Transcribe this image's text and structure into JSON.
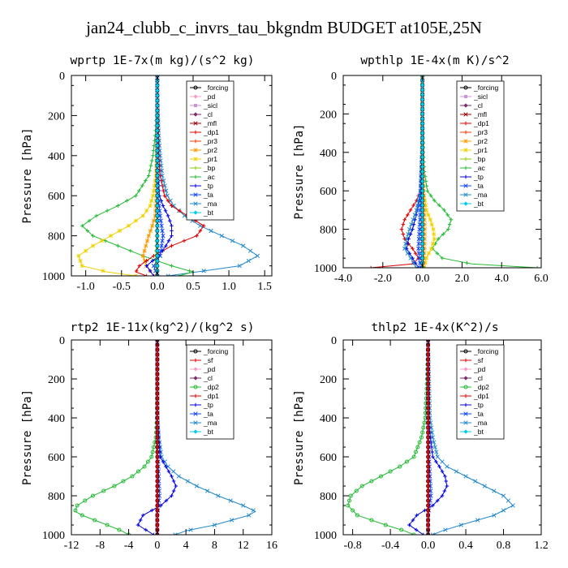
{
  "title": "jan24_clubb_c_invrs_tau_bkgndm  BUDGET at105E,25N",
  "colors": {
    "_forcing": "#000000",
    "_pd": "#f2a0c8",
    "_sicl": "#c896d2",
    "_cl": "#7a2a6a",
    "_mfl": "#990000",
    "_dp1": "#dd0000",
    "_pr3": "#ff3300",
    "_pr2": "#ff9900",
    "_pr1": "#f0d200",
    "_bp": "#88cc00",
    "_ac": "#22bb33",
    "_tp": "#0000dd",
    "_ta": "#1144ff",
    "_ma": "#2288cc",
    "_bt": "#00ccee",
    "_sf": "#dd0000",
    "_dp2": "#22bb33"
  },
  "chart_data": [
    {
      "type": "line",
      "title": "wprtp   1E-7x(m kg)/(s^2 kg)",
      "ylabel": "Pressure [hPa]",
      "ylim": [
        1000,
        0
      ],
      "xlim": [
        -1.2,
        1.6
      ],
      "xticks": [
        -1.0,
        -0.5,
        0.0,
        0.5,
        1.0,
        1.5
      ],
      "xticklabels": [
        "-1.0",
        "-0.5",
        "0.0",
        "0.5",
        "1.0",
        "1.5"
      ],
      "yticks": [
        0,
        200,
        400,
        600,
        800,
        1000
      ],
      "legend": [
        "_forcing",
        "_pd",
        "_sicl",
        "_cl",
        "_mfl",
        "_dp1",
        "_pr3",
        "_pr2",
        "_pr1",
        "_bp",
        "_ac",
        "_tp",
        "_ta",
        "_ma",
        "_bt"
      ],
      "series": [
        {
          "name": "_ma",
          "p": [
            0,
            100,
            200,
            300,
            400,
            500,
            600,
            650,
            700,
            750,
            800,
            850,
            900,
            950,
            980,
            1000
          ],
          "x": [
            0.0,
            0.0,
            0.01,
            0.02,
            0.04,
            0.07,
            0.14,
            0.23,
            0.38,
            0.6,
            0.9,
            1.2,
            1.4,
            1.15,
            0.55,
            0.15
          ]
        },
        {
          "name": "_ac",
          "p": [
            0,
            100,
            200,
            300,
            400,
            500,
            600,
            650,
            700,
            750,
            800,
            850,
            900,
            950,
            980,
            1000
          ],
          "x": [
            0.0,
            0.0,
            -0.01,
            -0.03,
            -0.06,
            -0.12,
            -0.3,
            -0.55,
            -0.85,
            -1.05,
            -0.9,
            -0.55,
            -0.2,
            0.2,
            0.5,
            0.3
          ]
        },
        {
          "name": "_pr1",
          "p": [
            0,
            200,
            400,
            500,
            600,
            650,
            700,
            750,
            800,
            850,
            900,
            950,
            980,
            1000
          ],
          "x": [
            0.0,
            0.0,
            -0.01,
            -0.02,
            -0.06,
            -0.1,
            -0.2,
            -0.4,
            -0.65,
            -0.9,
            -1.1,
            -1.05,
            -0.7,
            -0.3
          ]
        },
        {
          "name": "_pr2",
          "p": [
            0,
            400,
            600,
            700,
            750,
            800,
            850,
            900,
            950,
            1000
          ],
          "x": [
            0.0,
            0.0,
            -0.01,
            -0.03,
            -0.07,
            -0.12,
            -0.16,
            -0.2,
            -0.15,
            -0.05
          ]
        },
        {
          "name": "_dp1",
          "p": [
            0,
            200,
            400,
            500,
            600,
            650,
            700,
            750,
            800,
            850,
            900,
            950,
            980,
            1000
          ],
          "x": [
            0.0,
            0.01,
            0.02,
            0.04,
            0.1,
            0.2,
            0.42,
            0.65,
            0.55,
            0.2,
            -0.05,
            -0.25,
            -0.3,
            -0.15
          ]
        },
        {
          "name": "_tp",
          "p": [
            0,
            200,
            400,
            500,
            600,
            650,
            700,
            750,
            800,
            850,
            900,
            950,
            1000
          ],
          "x": [
            0.0,
            0.0,
            0.0,
            0.01,
            0.03,
            0.08,
            0.15,
            0.2,
            0.2,
            0.12,
            0.02,
            -0.15,
            -0.05
          ]
        },
        {
          "name": "_ta",
          "p": [
            0,
            400,
            600,
            700,
            800,
            900,
            950,
            1000
          ],
          "x": [
            0.0,
            0.0,
            0.01,
            0.04,
            0.08,
            0.04,
            -0.05,
            0.0
          ]
        },
        {
          "name": "_bp",
          "p": [
            0,
            400,
            600,
            800,
            900,
            950,
            1000
          ],
          "x": [
            0.0,
            0.0,
            0.0,
            -0.01,
            -0.02,
            -0.02,
            0.0
          ]
        },
        {
          "name": "_forcing",
          "p": [
            0,
            100,
            200,
            300,
            400,
            500,
            600,
            700,
            800,
            900,
            1000
          ],
          "x": [
            0,
            0,
            0,
            0,
            0,
            0,
            0,
            0,
            0,
            0,
            0
          ]
        },
        {
          "name": "_bt",
          "p": [
            0,
            200,
            400,
            600,
            800,
            1000
          ],
          "x": [
            0,
            0,
            0,
            0,
            0,
            0
          ]
        }
      ]
    },
    {
      "type": "line",
      "title": "wpthlp   1E-4x(m K)/s^2",
      "ylabel": "Pressure [hPa]",
      "ylim": [
        1000,
        0
      ],
      "xlim": [
        -4.0,
        6.0
      ],
      "xticks": [
        -4,
        -2,
        0,
        2,
        4,
        6
      ],
      "xticklabels": [
        "-4.0",
        "-2.0",
        "0.0",
        "2.0",
        "4.0",
        "6.0"
      ],
      "yticks": [
        0,
        200,
        400,
        600,
        800,
        1000
      ],
      "legend": [
        "_forcing",
        "_sicl",
        "_cl",
        "_mfl",
        "_dp1",
        "_pr3",
        "_pr2",
        "_pr1",
        "_bp",
        "_ac",
        "_tp",
        "_ta",
        "_ma",
        "_bt"
      ],
      "series": [
        {
          "name": "_ac",
          "p": [
            0,
            200,
            400,
            500,
            600,
            650,
            700,
            750,
            800,
            850,
            900,
            950,
            980,
            1000
          ],
          "x": [
            0.0,
            0.01,
            0.05,
            0.1,
            0.25,
            0.6,
            1.1,
            1.45,
            1.3,
            0.8,
            0.5,
            1.0,
            2.5,
            5.8
          ]
        },
        {
          "name": "_dp1",
          "p": [
            0,
            400,
            600,
            650,
            700,
            750,
            800,
            850,
            900,
            950,
            980,
            1000
          ],
          "x": [
            0.0,
            -0.02,
            -0.1,
            -0.3,
            -0.6,
            -0.9,
            -1.05,
            -0.9,
            -0.5,
            -0.2,
            -0.5,
            -2.6
          ]
        },
        {
          "name": "_pr1",
          "p": [
            0,
            400,
            600,
            700,
            750,
            800,
            850,
            900,
            950,
            1000
          ],
          "x": [
            0.0,
            0.0,
            0.05,
            0.2,
            0.4,
            0.55,
            0.6,
            0.45,
            0.2,
            0.1
          ]
        },
        {
          "name": "_tp",
          "p": [
            0,
            400,
            600,
            700,
            800,
            850,
            900,
            950,
            1000
          ],
          "x": [
            0.0,
            -0.02,
            -0.08,
            -0.25,
            -0.5,
            -0.7,
            -0.8,
            -0.5,
            -0.2
          ]
        },
        {
          "name": "_ma",
          "p": [
            0,
            400,
            600,
            700,
            800,
            850,
            900,
            950,
            1000
          ],
          "x": [
            0.0,
            -0.02,
            -0.1,
            -0.3,
            -0.65,
            -0.8,
            -0.9,
            -0.6,
            -0.3
          ]
        },
        {
          "name": "_ta",
          "p": [
            0,
            400,
            600,
            800,
            900,
            1000
          ],
          "x": [
            0.0,
            0.0,
            -0.05,
            -0.15,
            -0.2,
            -0.1
          ]
        },
        {
          "name": "_pr2",
          "p": [
            0,
            400,
            600,
            800,
            900,
            1000
          ],
          "x": [
            0.0,
            0.0,
            0.05,
            0.12,
            0.1,
            0.05
          ]
        },
        {
          "name": "_forcing",
          "p": [
            0,
            200,
            400,
            600,
            800,
            1000
          ],
          "x": [
            0,
            0,
            0,
            0,
            0,
            0
          ]
        },
        {
          "name": "_bt",
          "p": [
            0,
            200,
            400,
            600,
            800,
            1000
          ],
          "x": [
            0,
            0,
            0,
            0,
            0,
            0
          ]
        }
      ]
    },
    {
      "type": "line",
      "title": "rtp2   1E-11x(kg^2)/(kg^2 s)",
      "ylabel": "Pressure [hPa]",
      "ylim": [
        1000,
        0
      ],
      "xlim": [
        -12,
        16
      ],
      "xticks": [
        -12,
        -8,
        -4,
        0,
        4,
        8,
        12,
        16
      ],
      "xticklabels": [
        "-12",
        "-8",
        "-4",
        "0",
        "4",
        "8",
        "12",
        "16"
      ],
      "yticks": [
        0,
        200,
        400,
        600,
        800,
        1000
      ],
      "legend": [
        "_forcing",
        "_sf",
        "_pd",
        "_cl",
        "_dp2",
        "_dp1",
        "_tp",
        "_ta",
        "_ma",
        "_bt"
      ],
      "series": [
        {
          "name": "_ma",
          "p": [
            0,
            200,
            400,
            500,
            600,
            650,
            700,
            750,
            800,
            850,
            880,
            900,
            950,
            980,
            1000
          ],
          "x": [
            0.0,
            0.0,
            0.05,
            0.2,
            0.6,
            1.5,
            3.0,
            5.5,
            8.5,
            12.0,
            13.7,
            12.8,
            8.0,
            4.0,
            2.5
          ]
        },
        {
          "name": "_dp2",
          "p": [
            0,
            200,
            400,
            500,
            600,
            650,
            700,
            750,
            800,
            850,
            880,
            900,
            950,
            980,
            1000
          ],
          "x": [
            0.0,
            0.0,
            -0.05,
            -0.2,
            -0.8,
            -1.8,
            -3.5,
            -6.0,
            -9.0,
            -11.2,
            -11.5,
            -10.5,
            -7.0,
            -5.0,
            -4.0
          ]
        },
        {
          "name": "_tp",
          "p": [
            0,
            400,
            600,
            650,
            700,
            750,
            800,
            850,
            900,
            950,
            1000
          ],
          "x": [
            0.0,
            0.0,
            0.4,
            1.2,
            2.0,
            2.6,
            2.0,
            0.5,
            -2.0,
            -2.7,
            -0.5
          ]
        },
        {
          "name": "_ta",
          "p": [
            0,
            400,
            600,
            800,
            900,
            1000
          ],
          "x": [
            0.0,
            0.0,
            0.1,
            0.3,
            0.0,
            0.0
          ]
        },
        {
          "name": "_dp1",
          "p": [
            0,
            600,
            800,
            1000
          ],
          "x": [
            0,
            0,
            0,
            0
          ]
        },
        {
          "name": "_forcing",
          "p": [
            0,
            200,
            400,
            600,
            800,
            1000
          ],
          "x": [
            0,
            0,
            0,
            0,
            0,
            0
          ]
        },
        {
          "name": "_sf",
          "p": [
            0,
            100,
            200,
            300,
            400,
            500,
            600,
            700,
            800,
            900,
            1000
          ],
          "x": [
            0,
            0,
            0,
            0,
            0,
            0,
            0,
            0,
            0,
            0,
            0
          ]
        }
      ]
    },
    {
      "type": "line",
      "title": "thlp2   1E-4x(K^2)/s",
      "ylabel": "Pressure [hPa]",
      "ylim": [
        1000,
        0
      ],
      "xlim": [
        -0.9,
        1.2
      ],
      "xticks": [
        -0.8,
        -0.4,
        0.0,
        0.4,
        0.8,
        1.2
      ],
      "xticklabels": [
        "-0.8",
        "-0.4",
        "0.0",
        "0.4",
        "0.8",
        "1.2"
      ],
      "yticks": [
        0,
        200,
        400,
        600,
        800,
        1000
      ],
      "legend": [
        "_forcing",
        "_sf",
        "_pd",
        "_cl",
        "_dp2",
        "_dp1",
        "_tp",
        "_ta",
        "_ma",
        "_bt"
      ],
      "series": [
        {
          "name": "_ma",
          "p": [
            0,
            200,
            400,
            500,
            600,
            650,
            700,
            750,
            800,
            850,
            900,
            950,
            980,
            1000
          ],
          "x": [
            0.0,
            0.01,
            0.02,
            0.05,
            0.1,
            0.2,
            0.4,
            0.6,
            0.8,
            0.9,
            0.7,
            0.35,
            0.15,
            0.05
          ]
        },
        {
          "name": "_dp2",
          "p": [
            0,
            200,
            400,
            500,
            600,
            650,
            700,
            750,
            800,
            850,
            900,
            950,
            980,
            1000
          ],
          "x": [
            0.0,
            -0.01,
            -0.03,
            -0.07,
            -0.15,
            -0.3,
            -0.5,
            -0.7,
            -0.82,
            -0.85,
            -0.75,
            -0.45,
            -0.25,
            -0.15
          ]
        },
        {
          "name": "_tp",
          "p": [
            0,
            400,
            600,
            650,
            700,
            750,
            800,
            850,
            900,
            950,
            1000
          ],
          "x": [
            0.0,
            0.0,
            0.05,
            0.12,
            0.18,
            0.2,
            0.15,
            0.05,
            -0.12,
            -0.2,
            -0.05
          ]
        },
        {
          "name": "_ta",
          "p": [
            0,
            400,
            600,
            800,
            900,
            1000
          ],
          "x": [
            0.0,
            0.0,
            0.01,
            0.03,
            0.0,
            0.0
          ]
        },
        {
          "name": "_forcing",
          "p": [
            0,
            200,
            400,
            600,
            800,
            1000
          ],
          "x": [
            0,
            0,
            0,
            0,
            0,
            0
          ]
        },
        {
          "name": "_sf",
          "p": [
            0,
            100,
            200,
            300,
            400,
            500,
            600,
            700,
            800,
            900,
            1000
          ],
          "x": [
            0,
            0,
            0,
            0,
            0,
            0,
            0,
            0,
            0,
            0,
            0
          ]
        }
      ]
    }
  ]
}
